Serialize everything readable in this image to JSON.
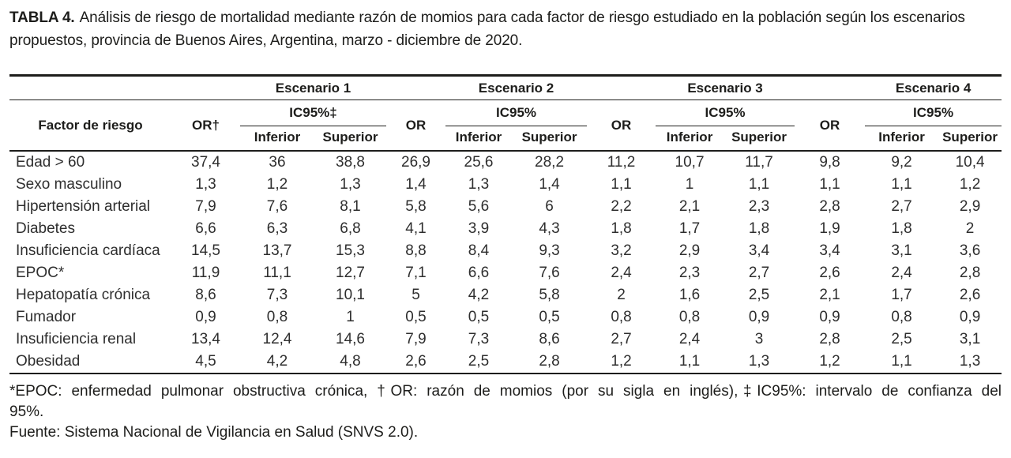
{
  "title": {
    "label": "TABLA 4.",
    "text": "Análisis de riesgo de mortalidad mediante razón de momios para cada factor de riesgo estudiado en la población según los escenarios propuestos, provincia de Buenos Aires, Argentina, marzo - diciembre de 2020."
  },
  "table": {
    "scenarios": [
      "Escenario 1",
      "Escenario 2",
      "Escenario 3",
      "Escenario 4"
    ],
    "factor_header": "Factor de riesgo",
    "or_headers": [
      "OR†",
      "OR",
      "OR",
      "OR"
    ],
    "ic_headers": [
      "IC95%‡",
      "IC95%",
      "IC95%",
      "IC95%"
    ],
    "inferior": "Inferior",
    "superior": "Superior",
    "rows": [
      {
        "label": "Edad > 60",
        "values": [
          "37,4",
          "36",
          "38,8",
          "26,9",
          "25,6",
          "28,2",
          "11,2",
          "10,7",
          "11,7",
          "9,8",
          "9,2",
          "10,4"
        ]
      },
      {
        "label": "Sexo masculino",
        "values": [
          "1,3",
          "1,2",
          "1,3",
          "1,4",
          "1,3",
          "1,4",
          "1,1",
          "1",
          "1,1",
          "1,1",
          "1,1",
          "1,2"
        ]
      },
      {
        "label": "Hipertensión arterial",
        "values": [
          "7,9",
          "7,6",
          "8,1",
          "5,8",
          "5,6",
          "6",
          "2,2",
          "2,1",
          "2,3",
          "2,8",
          "2,7",
          "2,9"
        ]
      },
      {
        "label": "Diabetes",
        "values": [
          "6,6",
          "6,3",
          "6,8",
          "4,1",
          "3,9",
          "4,3",
          "1,8",
          "1,7",
          "1,8",
          "1,9",
          "1,8",
          "2"
        ]
      },
      {
        "label": "Insuficiencia cardíaca",
        "values": [
          "14,5",
          "13,7",
          "15,3",
          "8,8",
          "8,4",
          "9,3",
          "3,2",
          "2,9",
          "3,4",
          "3,4",
          "3,1",
          "3,6"
        ]
      },
      {
        "label": "EPOC*",
        "values": [
          "11,9",
          "11,1",
          "12,7",
          "7,1",
          "6,6",
          "7,6",
          "2,4",
          "2,3",
          "2,7",
          "2,6",
          "2,4",
          "2,8"
        ]
      },
      {
        "label": "Hepatopatía crónica",
        "values": [
          "8,6",
          "7,3",
          "10,1",
          "5",
          "4,2",
          "5,8",
          "2",
          "1,6",
          "2,5",
          "2,1",
          "1,7",
          "2,6"
        ]
      },
      {
        "label": "Fumador",
        "values": [
          "0,9",
          "0,8",
          "1",
          "0,5",
          "0,5",
          "0,5",
          "0,8",
          "0,8",
          "0,9",
          "0,9",
          "0,8",
          "0,9"
        ]
      },
      {
        "label": "Insuficiencia renal",
        "values": [
          "13,4",
          "12,4",
          "14,6",
          "7,9",
          "7,3",
          "8,6",
          "2,7",
          "2,4",
          "3",
          "2,8",
          "2,5",
          "3,1"
        ]
      },
      {
        "label": "Obesidad",
        "values": [
          "4,5",
          "4,2",
          "4,8",
          "2,6",
          "2,5",
          "2,8",
          "1,2",
          "1,1",
          "1,3",
          "1,2",
          "1,1",
          "1,3"
        ]
      }
    ]
  },
  "footnotes": {
    "line1": "*EPOC: enfermedad pulmonar obstructiva crónica, †OR: razón de momios (por su sigla en inglés),‡IC95%: intervalo de confianza del",
    "line2": "95%.",
    "source": "Fuente: Sistema Nacional de Vigilancia en Salud (SNVS 2.0)."
  }
}
